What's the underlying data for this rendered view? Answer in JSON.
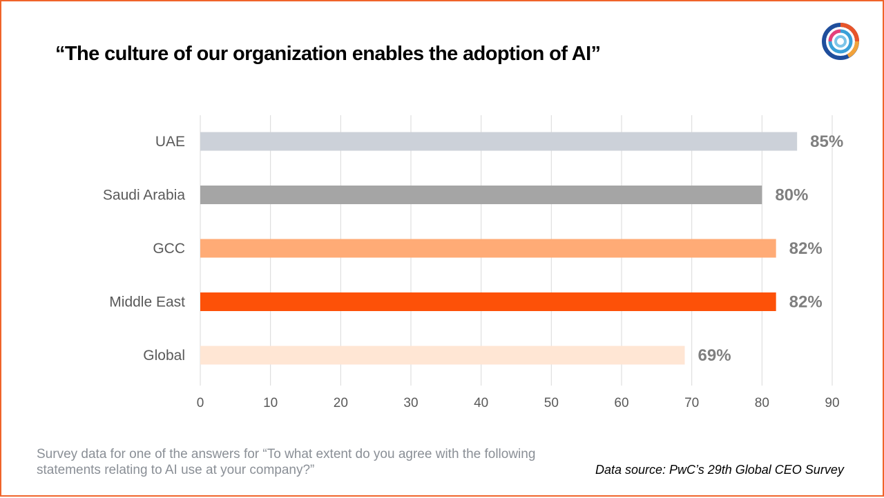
{
  "chart_data": {
    "type": "bar",
    "orientation": "horizontal",
    "title": "“The culture of our organization enables the adoption of AI”",
    "categories": [
      "UAE",
      "Saudi Arabia",
      "GCC",
      "Middle East",
      "Global"
    ],
    "values": [
      85,
      80,
      82,
      82,
      69
    ],
    "value_labels": [
      "85%",
      "80%",
      "82%",
      "82%",
      "69%"
    ],
    "bar_colors": [
      "#ccd1d9",
      "#a5a5a5",
      "#ffab76",
      "#fd5108",
      "#ffe6d4"
    ],
    "xlim": [
      0,
      90
    ],
    "xticks": [
      0,
      10,
      20,
      30,
      40,
      50,
      60,
      70,
      80,
      90
    ],
    "grid": true,
    "xlabel": "",
    "ylabel": ""
  },
  "footnote": "Survey data for one of the answers for “To what extent do you agree with the following statements relating to AI use at your company?”",
  "source": "Data source: PwC’s 29th Global CEO Survey",
  "logo_icon": "pwc-ring-logo-icon",
  "colors": {
    "border": "#f0642a",
    "grid": "#d9d9d9",
    "axis_text": "#595959",
    "value_text": "#7f7f7f"
  }
}
